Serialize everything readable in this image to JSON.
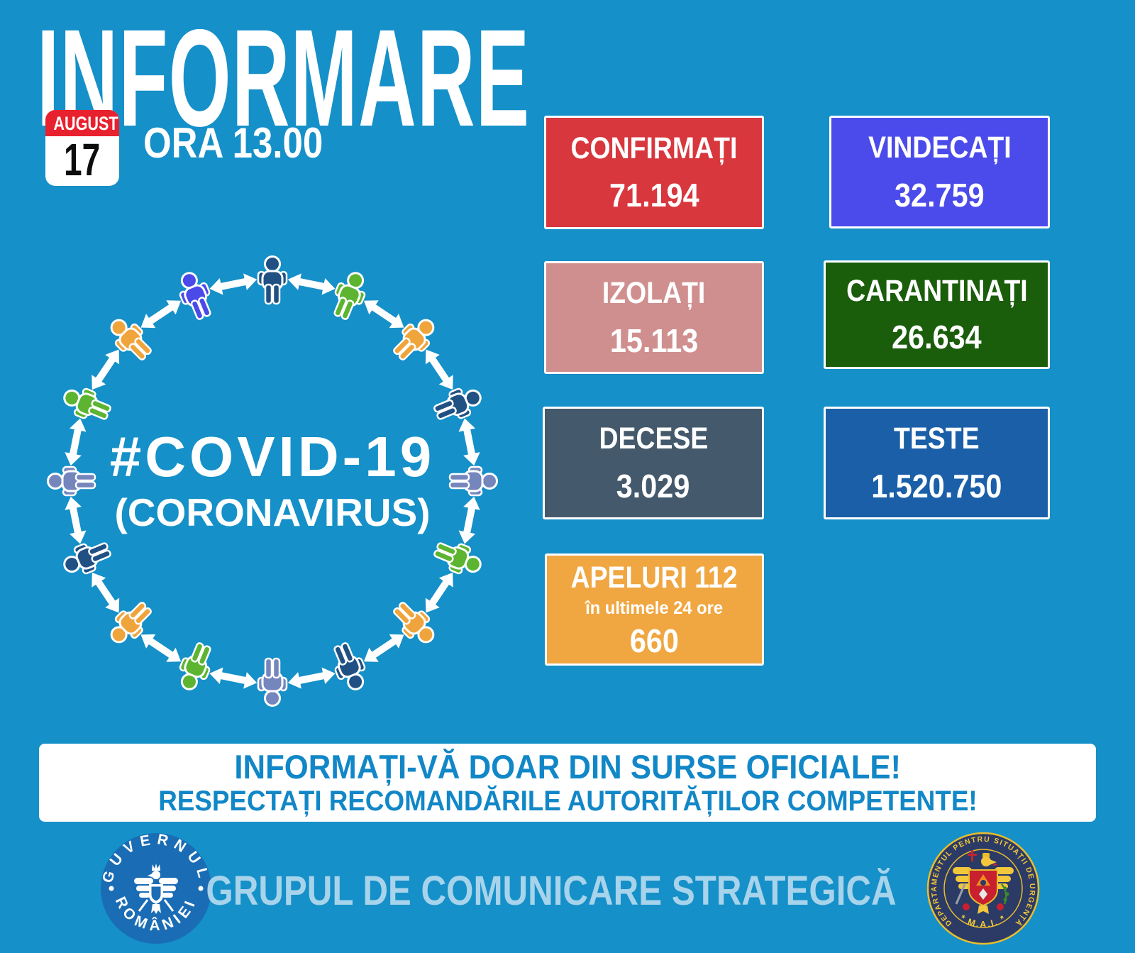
{
  "page": {
    "bg": "#1590C8"
  },
  "header": {
    "title": "INFORMARE",
    "time": "ORA 13.00",
    "calendar": {
      "month": "AUGUST",
      "day": "17",
      "band_color": "#E8212E"
    }
  },
  "diagram": {
    "title": "#COVID-19",
    "subtitle": "(CORONAVIRUS)",
    "arrow_color": "#FFFFFF",
    "people_colors": [
      "#215083",
      "#5CB431",
      "#F0A43C",
      "#215083",
      "#7586BD",
      "#5CB431",
      "#F0A43C",
      "#215083",
      "#7586BD",
      "#5CB431",
      "#F0A43C",
      "#215083",
      "#7586BD",
      "#5CB431",
      "#F0A43C",
      "#4A4AE8"
    ]
  },
  "stats": {
    "confirmati": {
      "label": "CONFIRMAȚI",
      "value": "71.194",
      "bg": "#D8373E"
    },
    "vindecati": {
      "label": "VINDECAȚI",
      "value": "32.759",
      "bg": "#4B4BEB"
    },
    "izolati": {
      "label": "IZOLAȚI",
      "value": "15.113",
      "bg": "#D08F8F"
    },
    "carantinati": {
      "label": "CARANTINAȚI",
      "value": "26.634",
      "bg": "#1A5D0B"
    },
    "decese": {
      "label": "DECESE",
      "value": "3.029",
      "bg": "#44596B"
    },
    "teste": {
      "label": "TESTE",
      "value": "1.520.750",
      "bg": "#1A5FA8"
    },
    "apeluri": {
      "label": "APELURI 112",
      "sublabel": "în ultimele 24 ore",
      "value": "660",
      "bg": "#F0A641"
    }
  },
  "banner": {
    "line1": "INFORMAȚI-VĂ DOAR DIN SURSE OFICIALE!",
    "line2": "RESPECTAȚI RECOMANDĂRILE AUTORITĂȚILOR COMPETENTE!",
    "text_color": "#1287C7"
  },
  "footer": {
    "group_label": "GRUPUL DE COMUNICARE STRATEGICĂ",
    "group_label_color": "#A7D3EB",
    "gov_logo": {
      "arc_top": "GUVERNUL",
      "arc_bottom": "ROMÂNIEI"
    },
    "dsu_logo": {
      "arc": "DEPARTAMENTUL PENTRU SITUAȚII DE URGENȚĂ",
      "bottom": "* M.A.I. *"
    }
  }
}
